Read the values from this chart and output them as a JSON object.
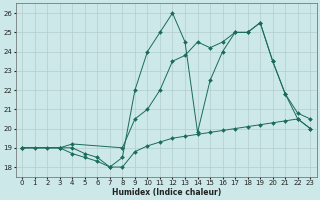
{
  "xlabel": "Humidex (Indice chaleur)",
  "bg_color": "#cce8e8",
  "grid_color": "#b5cece",
  "line_color": "#1a6b5a",
  "xlim": [
    -0.5,
    23.5
  ],
  "ylim": [
    17.5,
    26.5
  ],
  "xticks": [
    0,
    1,
    2,
    3,
    4,
    5,
    6,
    7,
    8,
    9,
    10,
    11,
    12,
    13,
    14,
    15,
    16,
    17,
    18,
    19,
    20,
    21,
    22,
    23
  ],
  "yticks": [
    18,
    19,
    20,
    21,
    22,
    23,
    24,
    25,
    26
  ],
  "series": [
    {
      "x": [
        0,
        1,
        2,
        3,
        4,
        5,
        6,
        7,
        8,
        9,
        10,
        11,
        12,
        13,
        14,
        15,
        16,
        17,
        18,
        19,
        20,
        21,
        22,
        23
      ],
      "y": [
        19.0,
        19.0,
        19.0,
        19.0,
        18.7,
        18.5,
        18.3,
        18.0,
        18.0,
        18.8,
        19.1,
        19.3,
        19.5,
        19.6,
        19.7,
        19.8,
        19.9,
        20.0,
        20.1,
        20.2,
        20.3,
        20.4,
        20.5,
        20.0
      ]
    },
    {
      "x": [
        0,
        3,
        4,
        5,
        6,
        7,
        8,
        9,
        10,
        11,
        12,
        13,
        14,
        15,
        16,
        17,
        18,
        19,
        20,
        21,
        22,
        23
      ],
      "y": [
        19.0,
        19.0,
        19.0,
        18.7,
        18.5,
        18.0,
        18.5,
        22.0,
        24.0,
        25.0,
        26.0,
        24.5,
        19.8,
        22.5,
        24.0,
        25.0,
        25.0,
        25.5,
        23.5,
        21.8,
        20.5,
        20.0
      ]
    },
    {
      "x": [
        0,
        3,
        4,
        8,
        9,
        10,
        11,
        12,
        13,
        14,
        15,
        16,
        17,
        18,
        19,
        20,
        21,
        22,
        23
      ],
      "y": [
        19.0,
        19.0,
        19.2,
        19.0,
        20.5,
        21.0,
        22.0,
        23.5,
        23.8,
        24.5,
        24.2,
        24.5,
        25.0,
        25.0,
        25.5,
        23.5,
        21.8,
        20.8,
        20.5
      ]
    }
  ]
}
